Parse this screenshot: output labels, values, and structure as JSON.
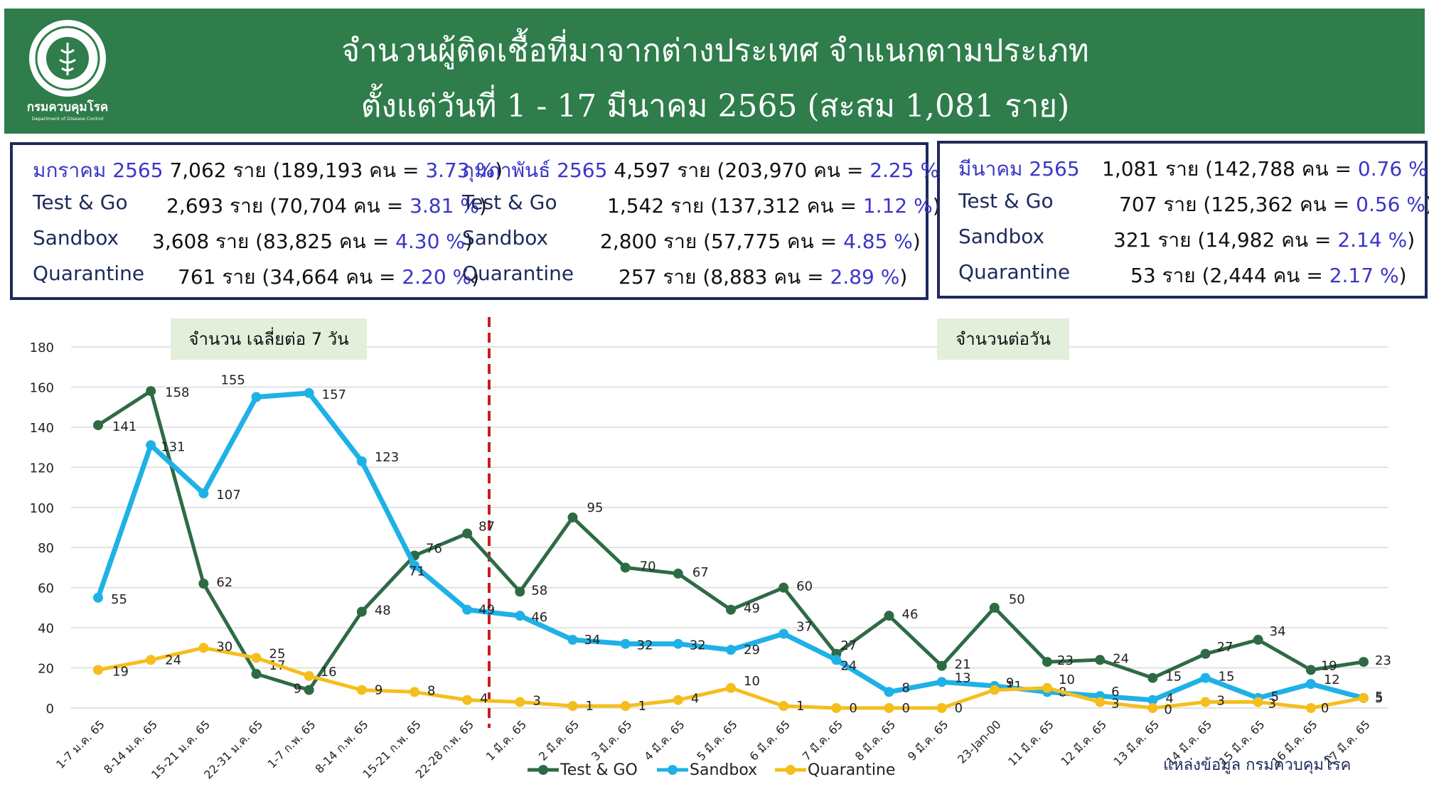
{
  "header": {
    "logo_text": "กรมควบคุมโรค",
    "logo_subtext": "Department of Disease Control",
    "title_line1": "จำนวนผู้ติดเชื้อที่มาจากต่างประเทศ จำแนกตามประเภท",
    "title_line2": "ตั้งแต่วันที่  1 - 17  มีนาคม  2565 (สะสม 1,081 ราย)"
  },
  "summary": {
    "jan": {
      "month": "มกราคม 2565",
      "rows": [
        {
          "label": "",
          "count": "7,062 ราย (189,193 คน = ",
          "pct": "3.73 %",
          "close": ")"
        },
        {
          "label": "Test & Go",
          "count": "2,693 ราย (70,704 คน = ",
          "pct": "3.81 %",
          "close": ")"
        },
        {
          "label": "Sandbox",
          "count": "3,608 ราย (83,825 คน = ",
          "pct": "4.30 %",
          "close": ")"
        },
        {
          "label": "Quarantine",
          "count": "761 ราย (34,664 คน = ",
          "pct": "2.20 %",
          "close": ")"
        }
      ]
    },
    "feb": {
      "month": "กุมภาพันธ์ 2565",
      "rows": [
        {
          "label": "",
          "count": "4,597 ราย (203,970 คน = ",
          "pct": "2.25 %",
          "close": ")"
        },
        {
          "label": "Test & Go",
          "count": "1,542 ราย (137,312 คน  = ",
          "pct": "1.12 %",
          "close": ")"
        },
        {
          "label": "Sandbox",
          "count": "2,800 ราย (57,775 คน  = ",
          "pct": "4.85 %",
          "close": ")"
        },
        {
          "label": "Quarantine",
          "count": "257 ราย (8,883 คน    = ",
          "pct": "2.89 %",
          "close": ")"
        }
      ]
    },
    "mar": {
      "month": "มีนาคม 2565",
      "rows": [
        {
          "label": "",
          "count": "1,081 ราย (142,788 คน = ",
          "pct": "0.76 %",
          "close": ")"
        },
        {
          "label": "Test & Go",
          "count": "707 ราย (125,362 คน = ",
          "pct": "0.56 %",
          "close": ")"
        },
        {
          "label": "Sandbox",
          "count": "321 ราย (14,982 คน  = ",
          "pct": "2.14 %",
          "close": ")"
        },
        {
          "label": "Quarantine",
          "count": "53 ราย (2,444 คน  = ",
          "pct": "2.17 %",
          "close": ")"
        }
      ]
    }
  },
  "chart_data": {
    "type": "line",
    "categories": [
      "1-7 ม.ค. 65",
      "8-14 ม.ค. 65",
      "15-21 ม.ค. 65",
      "22-31 ม.ค. 65",
      "1-7 ก.พ. 65",
      "8-14 ก.พ. 65",
      "15-21 ก.พ. 65",
      "22-28 ก.พ. 65",
      "1 มี.ค. 65",
      "2 มี.ค. 65",
      "3 มี.ค. 65",
      "4 มี.ค. 65",
      "5 มี.ค. 65",
      "6 มี.ค. 65",
      "7 มี.ค. 65",
      "8 มี.ค. 65",
      "9 มี.ค. 65",
      "23-Jan-00",
      "11 มี.ค. 65",
      "12 มี.ค. 65",
      "13 มี.ค. 65",
      "14 มี.ค. 65",
      "15 มี.ค. 65",
      "16 มี.ค. 65",
      "17 มี.ค. 65"
    ],
    "series": [
      {
        "name": "Test & GO",
        "color": "#2e6b45",
        "values": [
          141,
          158,
          62,
          17,
          9,
          48,
          76,
          87,
          58,
          95,
          70,
          67,
          49,
          60,
          27,
          46,
          21,
          50,
          23,
          24,
          15,
          27,
          34,
          19,
          23
        ]
      },
      {
        "name": "Sandbox",
        "color": "#1fb1e6",
        "values": [
          55,
          131,
          107,
          155,
          157,
          123,
          71,
          49,
          46,
          34,
          32,
          32,
          29,
          37,
          24,
          8,
          13,
          11,
          8,
          6,
          4,
          15,
          5,
          12,
          5
        ]
      },
      {
        "name": "Quarantine",
        "color": "#f4be1c",
        "values": [
          19,
          24,
          30,
          25,
          16,
          9,
          8,
          4,
          3,
          1,
          1,
          4,
          10,
          1,
          0,
          0,
          0,
          9,
          10,
          3,
          0,
          3,
          3,
          0,
          5
        ]
      }
    ],
    "ylim": [
      0,
      180
    ],
    "yticks": [
      0,
      20,
      40,
      60,
      80,
      100,
      120,
      140,
      160,
      180
    ],
    "grid": true,
    "legend": "bottom",
    "divider_color": "#c81e1e",
    "annotations": {
      "left_label": "จำนวน เฉลี่ยต่อ 7 วัน",
      "right_label": "จำนวนต่อวัน",
      "source": "แหล่งข้อมูล กรมควบคุมโรค"
    }
  }
}
